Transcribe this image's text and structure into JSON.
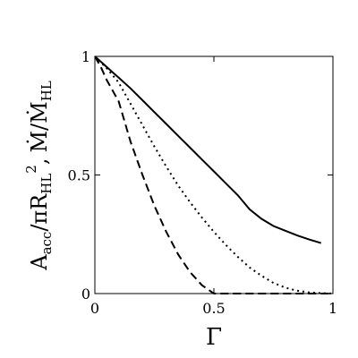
{
  "chart_data": {
    "type": "line",
    "title": "",
    "xlabel": "Γ",
    "ylabel_parts": {
      "a_main": "A",
      "a_sub": "acc",
      "slash_pi": "/πR",
      "r_sub": "HL",
      "r_sup": "2",
      "comma": ",",
      "m_main": "Ṁ/Ṁ",
      "m_sub": "HL"
    },
    "xlim": [
      0,
      1
    ],
    "ylim": [
      0,
      1
    ],
    "xticks": [
      0,
      0.5,
      1
    ],
    "xtick_labels": [
      "0",
      "0.5",
      "1"
    ],
    "yticks": [
      0,
      0.5,
      1
    ],
    "ytick_labels": [
      "0",
      "0.5",
      "1"
    ],
    "grid": false,
    "legend": "none",
    "series": [
      {
        "style": "solid",
        "x": [
          0,
          0.05,
          0.1,
          0.15,
          0.2,
          0.25,
          0.3,
          0.35,
          0.4,
          0.45,
          0.5,
          0.55,
          0.6,
          0.65,
          0.7,
          0.75,
          0.8,
          0.85,
          0.9,
          0.95
        ],
        "y": [
          1.0,
          0.955,
          0.91,
          0.865,
          0.815,
          0.765,
          0.715,
          0.665,
          0.615,
          0.565,
          0.515,
          0.465,
          0.415,
          0.355,
          0.315,
          0.285,
          0.265,
          0.245,
          0.228,
          0.213
        ]
      },
      {
        "style": "dotted",
        "x": [
          0,
          0.05,
          0.1,
          0.15,
          0.2,
          0.25,
          0.3,
          0.35,
          0.4,
          0.45,
          0.5,
          0.55,
          0.6,
          0.65,
          0.7,
          0.75,
          0.8,
          0.85,
          0.9,
          0.95,
          1.0
        ],
        "y": [
          1.0,
          0.95,
          0.89,
          0.8,
          0.71,
          0.62,
          0.535,
          0.455,
          0.385,
          0.32,
          0.26,
          0.205,
          0.155,
          0.11,
          0.075,
          0.045,
          0.025,
          0.012,
          0.005,
          0.002,
          0.0
        ]
      },
      {
        "style": "dashed",
        "x": [
          0,
          0.025,
          0.05,
          0.1,
          0.15,
          0.2,
          0.25,
          0.3,
          0.35,
          0.4,
          0.45,
          0.5,
          1.0
        ],
        "y": [
          1.0,
          0.955,
          0.9,
          0.81,
          0.64,
          0.5,
          0.37,
          0.26,
          0.165,
          0.09,
          0.035,
          0.0,
          0.0
        ]
      }
    ]
  }
}
